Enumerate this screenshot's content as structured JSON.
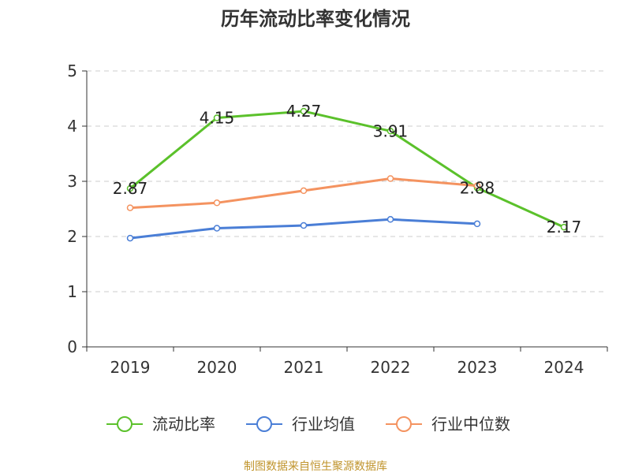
{
  "chart_data": {
    "type": "line",
    "title": "历年流动比率变化情况",
    "categories": [
      "2019",
      "2020",
      "2021",
      "2022",
      "2023",
      "2024"
    ],
    "ylim": [
      0,
      5
    ],
    "yticks": [
      "0",
      "1",
      "2",
      "3",
      "4",
      "5"
    ],
    "grid": true,
    "legend_position": "bottom",
    "series": [
      {
        "name": "流动比率",
        "color": "#5bc12b",
        "values": [
          2.87,
          4.15,
          4.27,
          3.91,
          2.88,
          2.17
        ],
        "labels": [
          "2.87",
          "4.15",
          "4.27",
          "3.91",
          "2.88",
          "2.17"
        ]
      },
      {
        "name": "行业均值",
        "color": "#4a7ed6",
        "values": [
          1.97,
          2.15,
          2.2,
          2.31,
          2.23,
          null
        ]
      },
      {
        "name": "行业中位数",
        "color": "#f49360",
        "values": [
          2.52,
          2.61,
          2.83,
          3.05,
          2.92,
          null
        ]
      }
    ]
  },
  "footer": "制图数据来自恒生聚源数据库"
}
